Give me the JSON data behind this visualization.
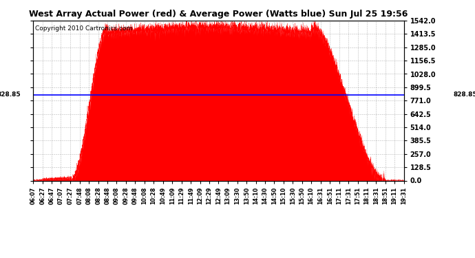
{
  "title": "West Array Actual Power (red) & Average Power (Watts blue) Sun Jul 25 19:56",
  "copyright": "Copyright 2010 Cartronics.com",
  "avg_power": 828.85,
  "y_max": 1542.0,
  "y_min": 0.0,
  "yticks": [
    0.0,
    128.5,
    257.0,
    385.5,
    514.0,
    642.5,
    771.0,
    899.5,
    1028.0,
    1156.5,
    1285.0,
    1413.5,
    1542.0
  ],
  "background_color": "#ffffff",
  "fill_color": "#ff0000",
  "line_color": "#0000ff",
  "grid_color": "#888888",
  "xtick_labels": [
    "06:07",
    "06:27",
    "06:47",
    "07:07",
    "07:27",
    "07:48",
    "08:08",
    "08:28",
    "08:48",
    "09:08",
    "09:28",
    "09:48",
    "10:08",
    "10:28",
    "10:49",
    "11:09",
    "11:29",
    "11:49",
    "12:09",
    "12:29",
    "12:49",
    "13:09",
    "13:30",
    "13:50",
    "14:10",
    "14:30",
    "14:50",
    "15:10",
    "15:30",
    "15:50",
    "16:10",
    "16:31",
    "16:51",
    "17:11",
    "17:31",
    "17:51",
    "18:11",
    "18:31",
    "18:51",
    "19:11",
    "19:31"
  ],
  "peak_power": 1500.0,
  "plateau_power": 1480.0,
  "rise_start": "07:30",
  "rise_end": "08:48",
  "fall_start": "16:10",
  "fall_end": "18:51"
}
